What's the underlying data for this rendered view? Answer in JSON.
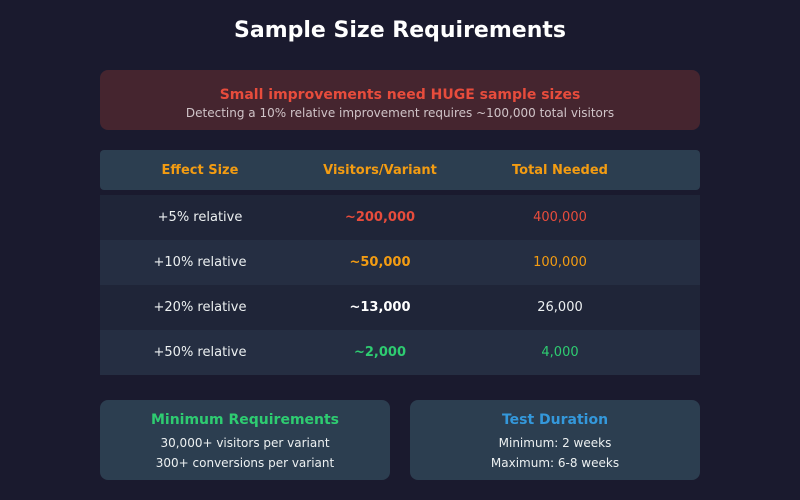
{
  "title": "Sample Size Requirements",
  "alert": {
    "heading": "Small improvements need HUGE sample sizes",
    "text": "Detecting a 10% relative improvement requires ~100,000 total visitors"
  },
  "table": {
    "headers": [
      "Effect Size",
      "Visitors/Variant",
      "Total Needed"
    ],
    "rows": [
      {
        "effect": "+5% relative",
        "per_variant": "~200,000",
        "total": "400,000",
        "color": "#e74c3c"
      },
      {
        "effect": "+10% relative",
        "per_variant": "~50,000",
        "total": "100,000",
        "color": "#f39c12"
      },
      {
        "effect": "+20% relative",
        "per_variant": "~13,000",
        "total": "26,000",
        "color": "#ffffff"
      },
      {
        "effect": "+50% relative",
        "per_variant": "~2,000",
        "total": "4,000",
        "color": "#2ecc71"
      }
    ]
  },
  "cards": [
    {
      "heading": "Minimum Requirements",
      "color": "#2ecc71",
      "lines": [
        "30,000+ visitors per variant",
        "300+ conversions per variant"
      ]
    },
    {
      "heading": "Test Duration",
      "color": "#3498db",
      "lines": [
        "Minimum: 2 weeks",
        "Maximum: 6-8 weeks"
      ]
    }
  ]
}
